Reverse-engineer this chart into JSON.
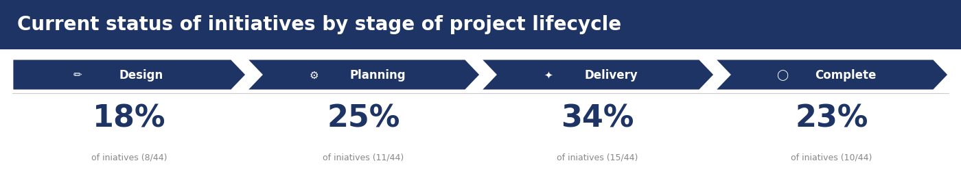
{
  "title": "Current status of initiatives by stage of project lifecycle",
  "title_bg_color": "#1e3464",
  "title_text_color": "#ffffff",
  "arrow_bg_color": "#1e3464",
  "arrow_text_color": "#ffffff",
  "pct_text_color": "#1e3464",
  "sub_text_color": "#888888",
  "background_color": "#ffffff",
  "outer_bg_color": "#e8e8e8",
  "stages": [
    "Design",
    "Planning",
    "Delivery",
    "Complete"
  ],
  "icon_texts": [
    "∕",
    "⚙",
    "⚡",
    "○"
  ],
  "percentages": [
    "18%",
    "25%",
    "34%",
    "23%"
  ],
  "subtexts": [
    "of iniatives (8/44)",
    "of iniatives (11/44)",
    "of iniatives (15/44)",
    "of iniatives (10/44)"
  ]
}
